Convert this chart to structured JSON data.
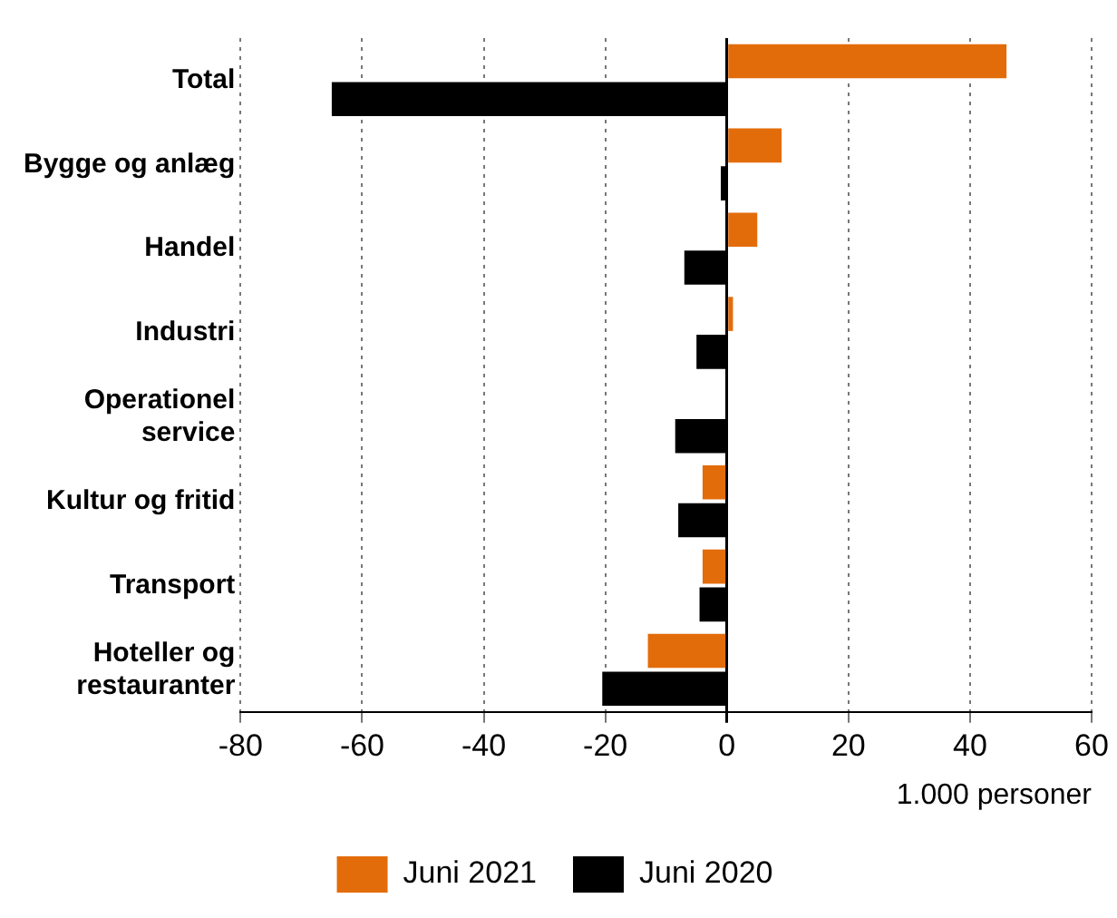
{
  "chart_data": {
    "type": "bar",
    "orientation": "horizontal",
    "categories": [
      "Total",
      "Bygge og anlæg",
      "Handel",
      "Industri",
      "Operationel service",
      "Kultur og fritid",
      "Transport",
      "Hoteller og restauranter"
    ],
    "series": [
      {
        "name": "Juni 2021",
        "color": "#e36c0a",
        "values": [
          46,
          9,
          5,
          1,
          0,
          -4,
          -4,
          -13
        ]
      },
      {
        "name": "Juni 2020",
        "color": "#000000",
        "values": [
          -65,
          -1,
          -7,
          -5,
          -8.5,
          -8,
          -4.5,
          -20.5
        ]
      }
    ],
    "xlim": [
      -80,
      60
    ],
    "xticks": [
      -80,
      -60,
      -40,
      -20,
      0,
      20,
      40,
      60
    ],
    "xlabel": "1.000 personer",
    "grid": "x",
    "legend": "bottom"
  }
}
